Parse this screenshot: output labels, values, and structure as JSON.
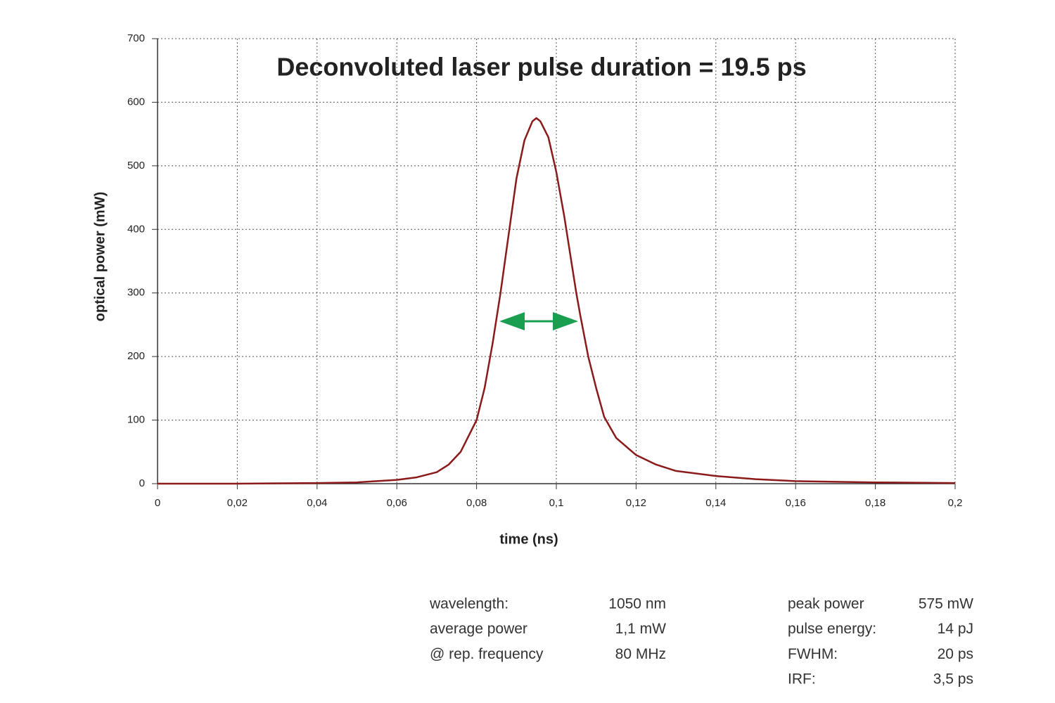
{
  "chart_data": {
    "type": "line",
    "annotation": "Deconvoluted laser pulse duration = 19.5 ps",
    "x_label": "time (ns)",
    "y_label": "optical power (mW)",
    "x": [
      0,
      0.02,
      0.04,
      0.05,
      0.055,
      0.06,
      0.065,
      0.07,
      0.073,
      0.076,
      0.078,
      0.08,
      0.082,
      0.084,
      0.086,
      0.088,
      0.09,
      0.092,
      0.094,
      0.095,
      0.096,
      0.098,
      0.1,
      0.102,
      0.104,
      0.105,
      0.106,
      0.108,
      0.11,
      0.112,
      0.115,
      0.12,
      0.125,
      0.13,
      0.14,
      0.15,
      0.16,
      0.18,
      0.2
    ],
    "series": [
      {
        "color": "#8b1a1a",
        "values": [
          0,
          0,
          1,
          2,
          4,
          6,
          10,
          18,
          30,
          50,
          75,
          100,
          150,
          220,
          300,
          390,
          480,
          540,
          570,
          575,
          570,
          545,
          490,
          420,
          340,
          300,
          265,
          200,
          150,
          105,
          72,
          45,
          30,
          20,
          12,
          7,
          4,
          2,
          1
        ]
      }
    ],
    "xlim": [
      0,
      0.2
    ],
    "xticks": [
      0,
      {
        "value": 0.02,
        "label": "0,02"
      },
      {
        "value": 0.04,
        "label": "0,04"
      },
      {
        "value": 0.06,
        "label": "0,06"
      },
      {
        "value": 0.08,
        "label": "0,08"
      },
      {
        "value": 0.1,
        "label": "0,1"
      },
      {
        "value": 0.12,
        "label": "0,12"
      },
      {
        "value": 0.14,
        "label": "0,14"
      },
      {
        "value": 0.16,
        "label": "0,16"
      },
      {
        "value": 0.18,
        "label": "0,18"
      },
      {
        "value": 0.2,
        "label": "0,2"
      }
    ],
    "ylim": [
      0,
      700
    ],
    "yticks": [
      0,
      100,
      200,
      300,
      400,
      500,
      600,
      700
    ],
    "grid": true,
    "annotation_color": "#1a9e50"
  },
  "parameters": {
    "left": [
      [
        "wavelength:",
        "1050 nm"
      ],
      [
        "average power",
        "1,1 mW"
      ],
      [
        "@ rep. frequency",
        "80 MHz"
      ]
    ],
    "right": [
      [
        "peak power",
        "575 mW"
      ],
      [
        "pulse energy:",
        "14 pJ"
      ],
      [
        "FWHM:",
        "20 ps"
      ],
      [
        "IRF:",
        "3,5 ps"
      ]
    ]
  }
}
